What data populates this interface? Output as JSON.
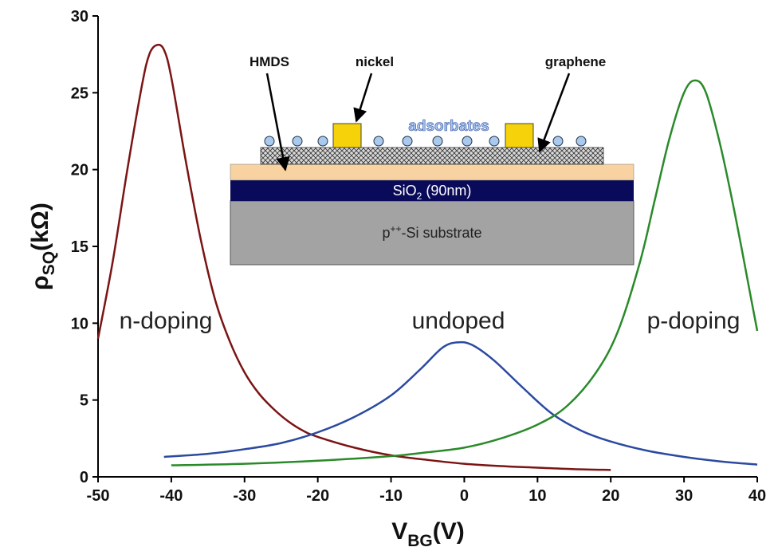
{
  "chart_data": {
    "type": "line",
    "xlabel": {
      "main": "V",
      "sub": "BG",
      "rest": "(V)"
    },
    "ylabel": {
      "main": "ρ",
      "sub": "SQ",
      "rest": "(kΩ)"
    },
    "xlim": [
      -50,
      40
    ],
    "xticks": [
      -50,
      -40,
      -30,
      -20,
      -10,
      0,
      10,
      20,
      30,
      40
    ],
    "ylim": [
      0,
      30
    ],
    "yticks": [
      0,
      5,
      10,
      15,
      20,
      25,
      30
    ],
    "series": [
      {
        "color": "#7b1414",
        "x": [
          -50,
          -48,
          -46,
          -44,
          -43,
          -42,
          -41,
          -40,
          -38,
          -36,
          -34,
          -32,
          -30,
          -28,
          -26,
          -24,
          -22,
          -20,
          -15,
          -10,
          -5,
          0,
          5,
          10,
          15,
          20
        ],
        "values": [
          9,
          14,
          20,
          25.5,
          27.5,
          28.1,
          27.8,
          26,
          20.5,
          15.5,
          11.5,
          8.8,
          6.8,
          5.4,
          4.4,
          3.6,
          3.0,
          2.6,
          1.9,
          1.4,
          1.1,
          0.85,
          0.7,
          0.6,
          0.5,
          0.45
        ]
      },
      {
        "color": "#2b4aa0",
        "x": [
          -41,
          -35,
          -30,
          -25,
          -20,
          -15,
          -10,
          -6,
          -3,
          -1,
          1,
          4,
          8,
          12,
          16,
          20,
          25,
          30,
          35,
          40
        ],
        "values": [
          1.3,
          1.5,
          1.8,
          2.2,
          2.9,
          3.9,
          5.3,
          7.0,
          8.4,
          8.75,
          8.6,
          7.6,
          5.8,
          4.1,
          3.0,
          2.3,
          1.7,
          1.3,
          1.0,
          0.8
        ]
      },
      {
        "color": "#2a8a2a",
        "x": [
          -40,
          -30,
          -20,
          -10,
          -5,
          0,
          5,
          10,
          14,
          18,
          21,
          24,
          26,
          28,
          30,
          31.5,
          33,
          35,
          37,
          39,
          40
        ],
        "values": [
          0.75,
          0.85,
          1.05,
          1.35,
          1.6,
          1.9,
          2.5,
          3.4,
          4.6,
          6.8,
          9.5,
          14,
          18,
          22,
          25,
          25.8,
          25,
          21.5,
          17,
          12,
          9.5
        ]
      }
    ],
    "annotations": [
      "n-doping",
      "undoped",
      "p-doping"
    ],
    "inset": {
      "hmds": "HMDS",
      "nickel": "nickel",
      "graphene": "graphene",
      "adsorbates": "adsorbates",
      "sio2": {
        "main": "SiO",
        "sub": "2",
        "rest": " (90nm)"
      },
      "substrate": {
        "main": "p",
        "sup": "++",
        "rest": "-Si substrate"
      }
    }
  }
}
